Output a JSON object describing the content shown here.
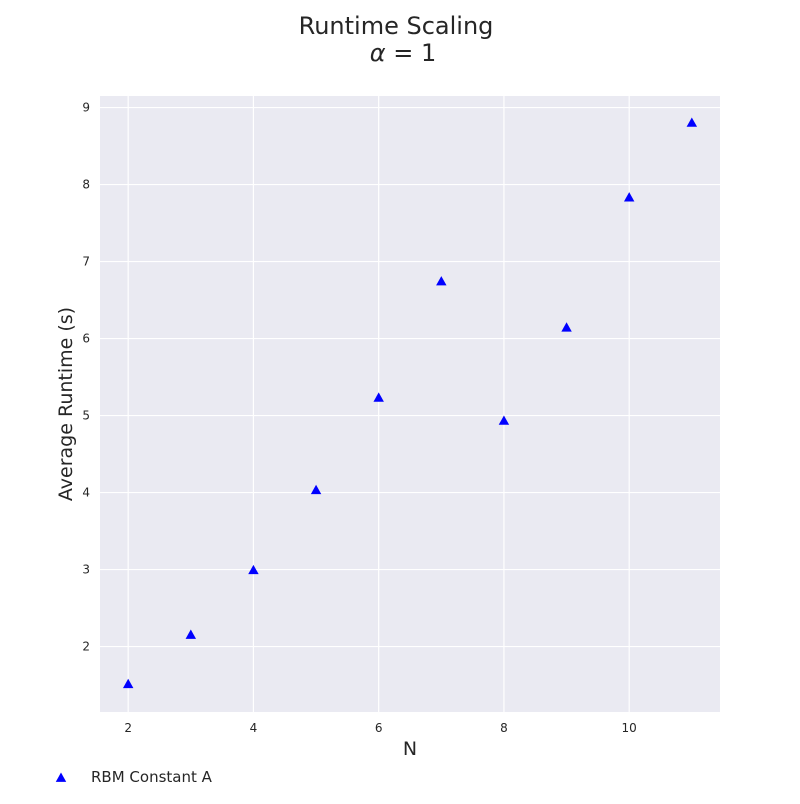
{
  "chart_data": {
    "type": "scatter",
    "title": "Runtime Scaling",
    "subtitle_symbol": "α",
    "subtitle_rest": " = 1",
    "xlabel": "N",
    "ylabel": "Average Runtime (s)",
    "xlim": [
      1.55,
      11.45
    ],
    "ylim": [
      1.15,
      9.15
    ],
    "xticks": [
      2,
      4,
      6,
      8,
      10
    ],
    "yticks": [
      2,
      3,
      4,
      5,
      6,
      7,
      8,
      9
    ],
    "grid": true,
    "legend_position": "bottom-left",
    "colors": {
      "plot_bg": "#EAEAF2",
      "grid": "#FFFFFF",
      "marker": "#0000FF"
    },
    "series": [
      {
        "name": "RBM Constant A",
        "marker": "triangle-up",
        "color": "#0000FF",
        "x": [
          2,
          3,
          4,
          5,
          6,
          7,
          8,
          9,
          10,
          11
        ],
        "y": [
          1.51,
          2.15,
          2.99,
          4.03,
          5.23,
          6.74,
          4.93,
          6.14,
          7.83,
          8.8
        ]
      }
    ]
  }
}
